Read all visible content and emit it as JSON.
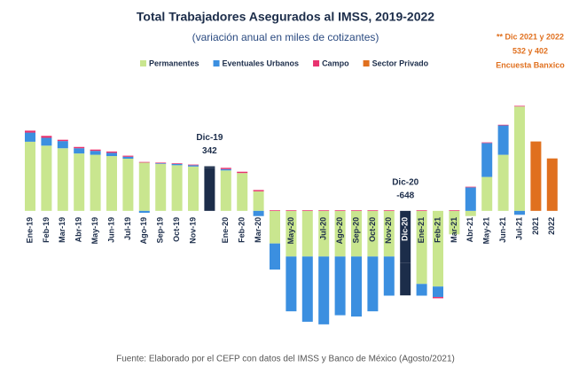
{
  "chart_data": {
    "type": "stacked_bar",
    "title": "Total Trabajadores Asegurados al IMSS, 2019-2022",
    "subtitle": "(variación anual en miles de cotizantes)",
    "categories": [
      "Ene-19",
      "Feb-19",
      "Mar-19",
      "Abr-19",
      "May-19",
      "Jun-19",
      "Jul-19",
      "Ago-19",
      "Sep-19",
      "Oct-19",
      "Nov-19",
      "Dic-19",
      "Ene-20",
      "Feb-20",
      "Mar-20",
      null,
      "May-20",
      null,
      "Jul-20",
      "Ago-20",
      "Sep-20",
      "Oct-20",
      "Nov-20",
      "Dic-20",
      "Ene-21",
      "Feb-21",
      "Mar-21",
      "Abr-21",
      "May-21",
      "Jun-21",
      "Jul-21",
      "2021",
      "2022"
    ],
    "series": [
      {
        "name": "Permanentes",
        "color": "#c9e68f",
        "values": [
          530,
          500,
          480,
          440,
          430,
          420,
          400,
          370,
          360,
          350,
          340,
          330,
          310,
          290,
          150,
          -250,
          -350,
          -350,
          -350,
          -350,
          -350,
          -350,
          -350,
          -400,
          -560,
          -580,
          -180,
          -40,
          260,
          430,
          800,
          null,
          null
        ]
      },
      {
        "name": "Eventuales Urbanos",
        "color": "#3b8fe0",
        "values": [
          70,
          60,
          55,
          40,
          30,
          25,
          15,
          -15,
          5,
          10,
          10,
          5,
          10,
          0,
          -40,
          -200,
          -420,
          -500,
          -520,
          -450,
          -460,
          -420,
          -300,
          -248,
          -90,
          -80,
          0,
          180,
          260,
          225,
          -30,
          null,
          null
        ]
      },
      {
        "name": "Campo",
        "color": "#e8336f",
        "values": [
          15,
          15,
          10,
          10,
          10,
          10,
          8,
          5,
          5,
          5,
          5,
          7,
          10,
          10,
          10,
          5,
          5,
          5,
          5,
          5,
          5,
          5,
          5,
          0,
          5,
          -10,
          5,
          5,
          5,
          5,
          5,
          null,
          null
        ]
      },
      {
        "name": "Sector Privado",
        "color": "#e0701f",
        "values": [
          null,
          null,
          null,
          null,
          null,
          null,
          null,
          null,
          null,
          null,
          null,
          null,
          null,
          null,
          null,
          null,
          null,
          null,
          null,
          null,
          null,
          null,
          null,
          null,
          null,
          null,
          null,
          null,
          null,
          null,
          null,
          532,
          402
        ]
      }
    ],
    "highlight_color": "#1c2d4a",
    "annotations": [
      {
        "x": "Dic-19",
        "lines": [
          "Dic-19",
          "342"
        ]
      },
      {
        "x": "Dic-20",
        "lines": [
          "Dic-20",
          "-648"
        ]
      }
    ],
    "note": [
      "** Dic 2021 y 2022",
      "532 y 402",
      "Encuesta Banxico"
    ],
    "note_color": "#e0701f",
    "source": "Fuente: Elaborado por el CEFP con datos del IMSS y Banco de México (Agosto/2021)",
    "ylim": [
      -1000,
      1100
    ],
    "legend": "top"
  }
}
